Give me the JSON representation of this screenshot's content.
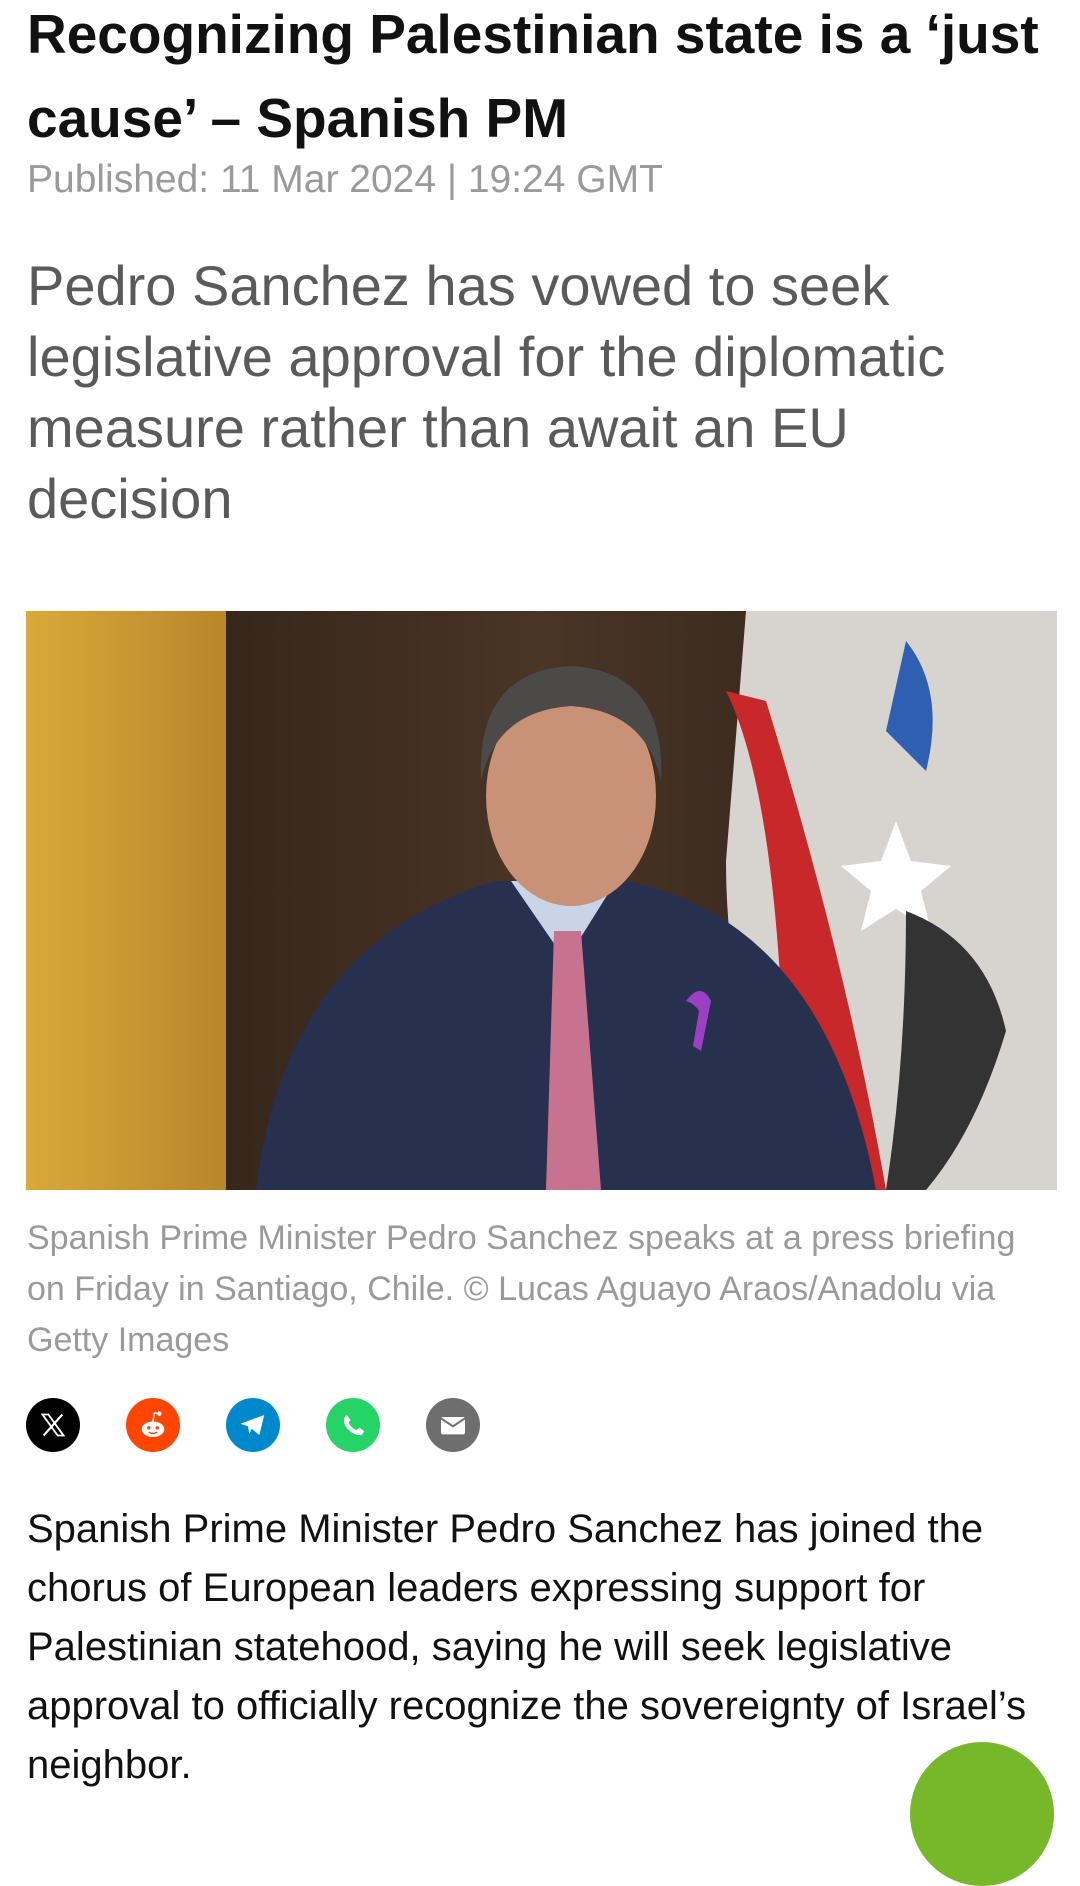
{
  "article": {
    "title": "Recognizing Palestinian state is a ‘just cause’ – Spanish PM",
    "published": "Published: 11 Mar 2024 | 19:24 GMT",
    "subtitle": "Pedro Sanchez has vowed to seek legislative approval for the diplomatic measure rather than await an EU decision",
    "caption": "Spanish Prime Minister Pedro Sanchez speaks at a press briefing on Friday in Santiago, Chile. ©  Lucas Aguayo Araos/Anadolu via Getty Images",
    "body": "Spanish Prime Minister Pedro Sanchez has joined the chorus of European leaders expressing support for Palestinian statehood, saying he will seek legislative approval to officially recognize the sovereignty of Israel’s neighbor."
  },
  "share": [
    {
      "icon": "x-icon",
      "color": "#000000"
    },
    {
      "icon": "reddit-icon",
      "color": "#ff4500"
    },
    {
      "icon": "telegram-icon",
      "color": "#0088cc"
    },
    {
      "icon": "whatsapp-icon",
      "color": "#25d366"
    },
    {
      "icon": "email-icon",
      "color": "#6e6e6e"
    }
  ],
  "fab": {
    "color": "#76b82a"
  }
}
